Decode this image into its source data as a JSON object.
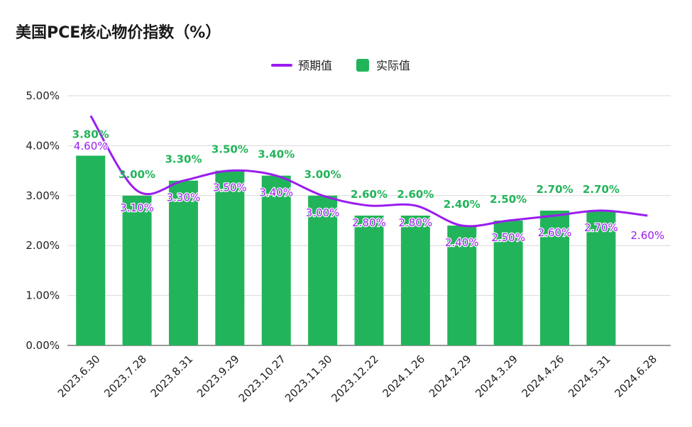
{
  "chart_data": {
    "type": "bar",
    "title": "美国PCE核心物价指数（%）",
    "categories": [
      "2023.6.30",
      "2023.7.28",
      "2023.8.31",
      "2023.9.29",
      "2023.10.27",
      "2023.11.30",
      "2023.12.22",
      "2024.1.26",
      "2024.2.29",
      "2024.3.29",
      "2024.4.26",
      "2024.5.31",
      "2024.6.28"
    ],
    "series": [
      {
        "name": "实际值",
        "type": "bar",
        "color": "#22b45a",
        "values": [
          3.8,
          3.0,
          3.3,
          3.5,
          3.4,
          3.0,
          2.6,
          2.6,
          2.4,
          2.5,
          2.7,
          2.7,
          null
        ],
        "labels": [
          "3.80%",
          "3.00%",
          "3.30%",
          "3.50%",
          "3.40%",
          "3.00%",
          "2.60%",
          "2.60%",
          "2.40%",
          "2.50%",
          "2.70%",
          "2.70%",
          ""
        ]
      },
      {
        "name": "预期值",
        "type": "line",
        "color": "#9b1df0",
        "values": [
          4.6,
          3.1,
          3.3,
          3.5,
          3.4,
          3.0,
          2.8,
          2.8,
          2.4,
          2.5,
          2.6,
          2.7,
          2.6
        ],
        "labels": [
          "4.60%",
          "3.10%",
          "3.30%",
          "3.50%",
          "3.40%",
          "3.00%",
          "2.80%",
          "2.80%",
          "2.40%",
          "2.50%",
          "2.60%",
          "2.70%",
          "2.60%"
        ]
      }
    ],
    "yticks": [
      "0.00%",
      "1.00%",
      "2.00%",
      "3.00%",
      "4.00%",
      "5.00%"
    ],
    "ylim": [
      0,
      5
    ],
    "grid": true,
    "legend": "top-center"
  }
}
